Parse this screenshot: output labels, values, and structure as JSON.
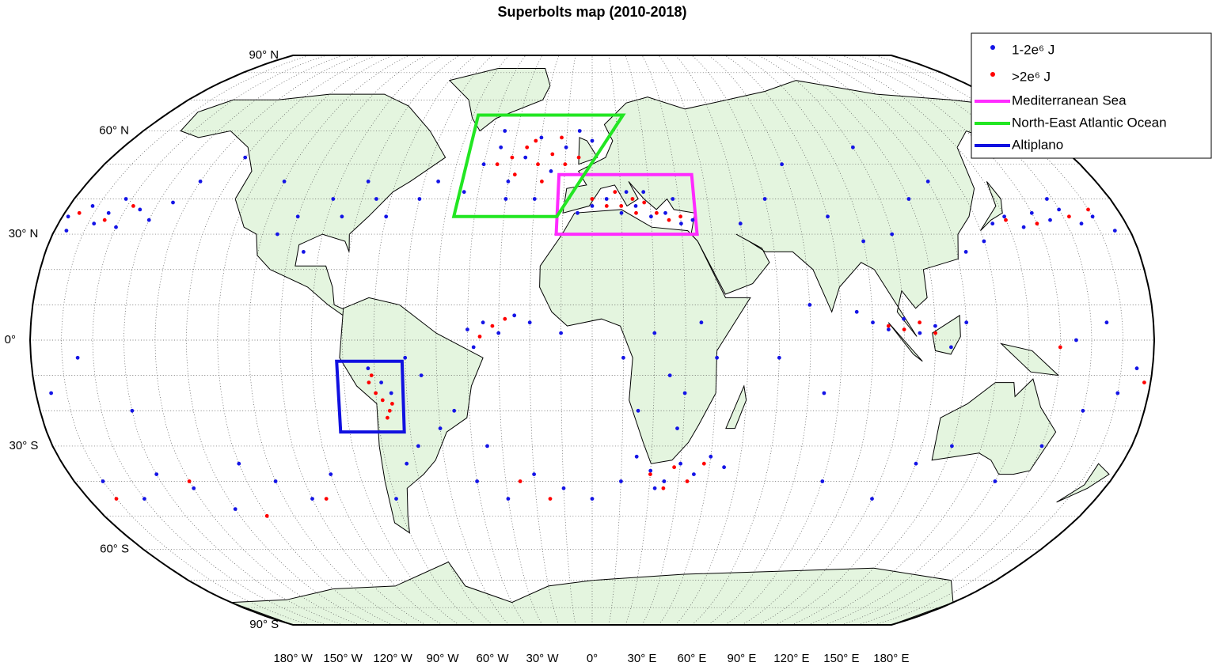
{
  "title": "Superbolts map (2010-2018)",
  "series": [
    {
      "name": "1-2e⁶ J",
      "color": "#1414e6",
      "points": [
        [
          -178,
          35
        ],
        [
          -172,
          38
        ],
        [
          -168,
          33
        ],
        [
          -165,
          36
        ],
        [
          -160,
          32
        ],
        [
          -155,
          37
        ],
        [
          -150,
          34
        ],
        [
          -145,
          39
        ],
        [
          -176,
          31
        ],
        [
          -162,
          40
        ],
        [
          -140,
          45
        ],
        [
          -130,
          52
        ],
        [
          135,
          33
        ],
        [
          140,
          35
        ],
        [
          145,
          32
        ],
        [
          150,
          36
        ],
        [
          155,
          34
        ],
        [
          160,
          37
        ],
        [
          165,
          33
        ],
        [
          170,
          35
        ],
        [
          175,
          31
        ],
        [
          158,
          40
        ],
        [
          130,
          28
        ],
        [
          123,
          25
        ],
        [
          -40,
          50
        ],
        [
          -35,
          55
        ],
        [
          -30,
          45
        ],
        [
          -25,
          52
        ],
        [
          -20,
          58
        ],
        [
          -15,
          48
        ],
        [
          -10,
          55
        ],
        [
          -5,
          60
        ],
        [
          0,
          57
        ],
        [
          -30,
          40
        ],
        [
          -45,
          42
        ],
        [
          -55,
          45
        ],
        [
          -60,
          40
        ],
        [
          -70,
          35
        ],
        [
          -20,
          40
        ],
        [
          -35,
          60
        ],
        [
          -5,
          36
        ],
        [
          0,
          38
        ],
        [
          5,
          40
        ],
        [
          10,
          36
        ],
        [
          15,
          38
        ],
        [
          20,
          35
        ],
        [
          25,
          36
        ],
        [
          30,
          33
        ],
        [
          34,
          34
        ],
        [
          12,
          42
        ],
        [
          18,
          42
        ],
        [
          28,
          40
        ],
        [
          -40,
          3
        ],
        [
          -35,
          5
        ],
        [
          -30,
          2
        ],
        [
          -25,
          7
        ],
        [
          -38,
          -2
        ],
        [
          -20,
          5
        ],
        [
          -10,
          2
        ],
        [
          10,
          -5
        ],
        [
          20,
          2
        ],
        [
          25,
          -10
        ],
        [
          30,
          -15
        ],
        [
          15,
          -20
        ],
        [
          28,
          -25
        ],
        [
          35,
          5
        ],
        [
          40,
          -5
        ],
        [
          15,
          -33
        ],
        [
          20,
          -37
        ],
        [
          25,
          -40
        ],
        [
          30,
          -35
        ],
        [
          35,
          -38
        ],
        [
          40,
          -33
        ],
        [
          45,
          -36
        ],
        [
          22,
          -42
        ],
        [
          10,
          -40
        ],
        [
          90,
          5
        ],
        [
          95,
          3
        ],
        [
          100,
          6
        ],
        [
          105,
          2
        ],
        [
          110,
          4
        ],
        [
          85,
          8
        ],
        [
          115,
          -2
        ],
        [
          120,
          5
        ],
        [
          70,
          10
        ],
        [
          60,
          -5
        ],
        [
          75,
          -15
        ],
        [
          -72,
          -8
        ],
        [
          -68,
          -12
        ],
        [
          -65,
          -15
        ],
        [
          -60,
          -5
        ],
        [
          -55,
          -10
        ],
        [
          -50,
          -25
        ],
        [
          -58,
          -30
        ],
        [
          -63,
          -35
        ],
        [
          -70,
          -45
        ],
        [
          -45,
          -20
        ],
        [
          -35,
          -30
        ],
        [
          -170,
          -40
        ],
        [
          -160,
          -45
        ],
        [
          -150,
          -38
        ],
        [
          -140,
          -42
        ],
        [
          -130,
          -48
        ],
        [
          -120,
          -35
        ],
        [
          -110,
          -40
        ],
        [
          -100,
          -45
        ],
        [
          -90,
          -38
        ],
        [
          -175,
          -15
        ],
        [
          -165,
          -5
        ],
        [
          -150,
          -20
        ],
        [
          -40,
          -40
        ],
        [
          -30,
          -45
        ],
        [
          -20,
          -38
        ],
        [
          -10,
          -42
        ],
        [
          0,
          -45
        ],
        [
          140,
          -40
        ],
        [
          150,
          -30
        ],
        [
          160,
          -20
        ],
        [
          170,
          -15
        ],
        [
          175,
          -8
        ],
        [
          165,
          5
        ],
        [
          155,
          0
        ],
        [
          120,
          -30
        ],
        [
          110,
          -35
        ],
        [
          100,
          -45
        ],
        [
          80,
          -40
        ],
        [
          80,
          35
        ],
        [
          90,
          28
        ],
        [
          100,
          30
        ],
        [
          110,
          40
        ],
        [
          60,
          40
        ],
        [
          50,
          33
        ],
        [
          70,
          50
        ],
        [
          120,
          45
        ],
        [
          100,
          55
        ],
        [
          -100,
          35
        ],
        [
          -90,
          40
        ],
        [
          -85,
          35
        ],
        [
          -95,
          25
        ],
        [
          -105,
          30
        ],
        [
          -110,
          45
        ],
        [
          -80,
          45
        ],
        [
          -75,
          40
        ]
      ]
    },
    {
      "name": ">2e⁶ J",
      "color": "#ff0000",
      "points": [
        [
          -175,
          36
        ],
        [
          -165,
          34
        ],
        [
          -158,
          38
        ],
        [
          140,
          34
        ],
        [
          150,
          33
        ],
        [
          162,
          35
        ],
        [
          170,
          37
        ],
        [
          -30,
          52
        ],
        [
          -25,
          55
        ],
        [
          -20,
          50
        ],
        [
          -15,
          53
        ],
        [
          -22,
          57
        ],
        [
          -10,
          50
        ],
        [
          -28,
          47
        ],
        [
          -18,
          45
        ],
        [
          -12,
          58
        ],
        [
          -5,
          52
        ],
        [
          -35,
          50
        ],
        [
          0,
          40
        ],
        [
          5,
          38
        ],
        [
          10,
          38
        ],
        [
          15,
          36
        ],
        [
          18,
          39
        ],
        [
          22,
          36
        ],
        [
          26,
          34
        ],
        [
          8,
          42
        ],
        [
          30,
          35
        ],
        [
          14,
          40
        ],
        [
          -32,
          4
        ],
        [
          -28,
          6
        ],
        [
          -36,
          1
        ],
        [
          95,
          4
        ],
        [
          100,
          3
        ],
        [
          105,
          5
        ],
        [
          110,
          2
        ],
        [
          20,
          -38
        ],
        [
          28,
          -36
        ],
        [
          33,
          -40
        ],
        [
          38,
          -35
        ],
        [
          25,
          -42
        ],
        [
          -72,
          -12
        ],
        [
          -70,
          -15
        ],
        [
          -68,
          -17
        ],
        [
          -66,
          -20
        ],
        [
          -67,
          -22
        ],
        [
          -71,
          -10
        ],
        [
          -65,
          -18
        ],
        [
          -140,
          -40
        ],
        [
          -120,
          -50
        ],
        [
          -95,
          -45
        ],
        [
          -170,
          -45
        ],
        [
          -25,
          -40
        ],
        [
          -15,
          -45
        ],
        [
          178,
          -12
        ],
        [
          150,
          -2
        ]
      ]
    }
  ],
  "regions": [
    {
      "name": "Mediterranean Sea",
      "color": "#ff2bff",
      "corners": [
        [
          -12,
          47
        ],
        [
          36,
          47
        ],
        [
          35,
          30
        ],
        [
          -12,
          30
        ]
      ]
    },
    {
      "name": "North-East Atlantic Ocean",
      "color": "#22e622",
      "corners": [
        [
          -48,
          65
        ],
        [
          13,
          65
        ],
        [
          -12,
          35
        ],
        [
          -47,
          35
        ]
      ]
    },
    {
      "name": "Altiplano",
      "color": "#1010e0",
      "corners": [
        [
          -82,
          -6
        ],
        [
          -61,
          -6
        ],
        [
          -62,
          -26
        ],
        [
          -83,
          -26
        ]
      ]
    }
  ],
  "latitude_labels": [
    {
      "value": 90,
      "label": "90° N"
    },
    {
      "value": 60,
      "label": "60° N"
    },
    {
      "value": 30,
      "label": "30° N"
    },
    {
      "value": 0,
      "label": "0°"
    },
    {
      "value": -30,
      "label": "30° S"
    },
    {
      "value": -60,
      "label": "60° S"
    },
    {
      "value": -90,
      "label": "90° S"
    }
  ],
  "longitude_labels": [
    {
      "value": -180,
      "label": "180° W"
    },
    {
      "value": -150,
      "label": "150° W"
    },
    {
      "value": -120,
      "label": "120° W"
    },
    {
      "value": -90,
      "label": "90° W"
    },
    {
      "value": -60,
      "label": "60° W"
    },
    {
      "value": -30,
      "label": "30° W"
    },
    {
      "value": 0,
      "label": "0°"
    },
    {
      "value": 30,
      "label": "30° E"
    },
    {
      "value": 60,
      "label": "60° E"
    },
    {
      "value": 90,
      "label": "90° E"
    },
    {
      "value": 120,
      "label": "120° E"
    },
    {
      "value": 150,
      "label": "150° E"
    },
    {
      "value": 180,
      "label": "180° E"
    }
  ]
}
